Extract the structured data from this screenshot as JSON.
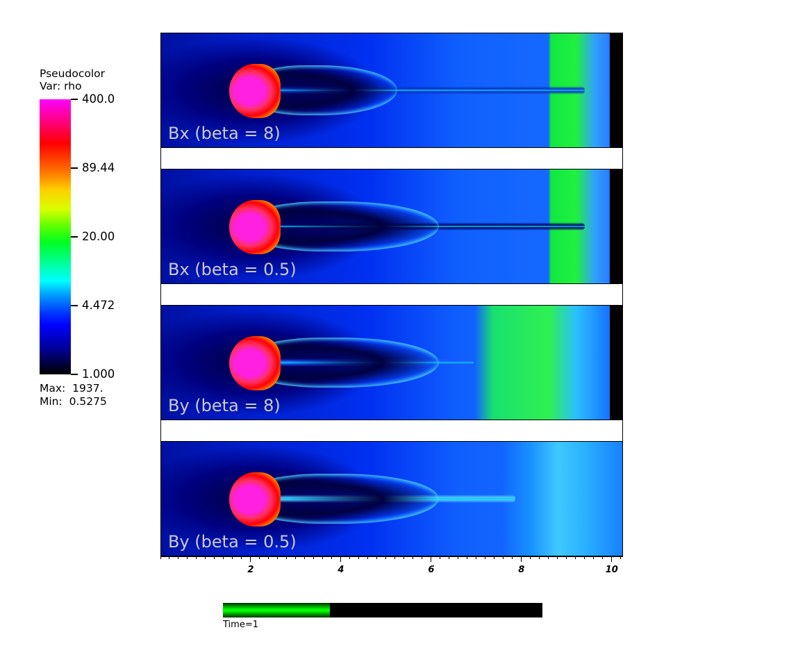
{
  "legend": {
    "title_line1": "Pseudocolor",
    "title_line2": "Var: rho",
    "colorbar_labels": [
      "400.0",
      "89.44",
      "20.00",
      "4.472",
      "1.000"
    ],
    "max_label": "Max:  1937.",
    "min_label": "Min:  0.5275"
  },
  "colormap": {
    "top": "#ff00ff",
    "high": "#ff0000",
    "mid": "#00ff20",
    "low": "#0000ff",
    "bottom": "#000000"
  },
  "panels": [
    {
      "label": "Bx (beta = 8)"
    },
    {
      "label": "Bx (beta = 0.5)"
    },
    {
      "label": "By (beta = 8)"
    },
    {
      "label": "By (beta = 0.5)"
    }
  ],
  "chart_data": {
    "type": "heatmap",
    "variable": "rho",
    "color_scale": "log",
    "color_range": [
      1.0,
      400.0
    ],
    "color_ticks": [
      400.0,
      89.44,
      20.0,
      4.472,
      1.0
    ],
    "data_max": 1937,
    "data_min": 0.5275,
    "x_ticks": [
      "2",
      "4",
      "6",
      "8",
      "10"
    ],
    "x_tick_values": [
      2,
      4,
      6,
      8,
      10
    ],
    "xlim": [
      0,
      10.25
    ],
    "panel_labels": [
      "Bx (beta = 8)",
      "Bx (beta = 0.5)",
      "By (beta = 8)",
      "By (beta = 0.5)"
    ]
  },
  "time": {
    "label": "Time=1",
    "progress_fraction": 0.335
  }
}
